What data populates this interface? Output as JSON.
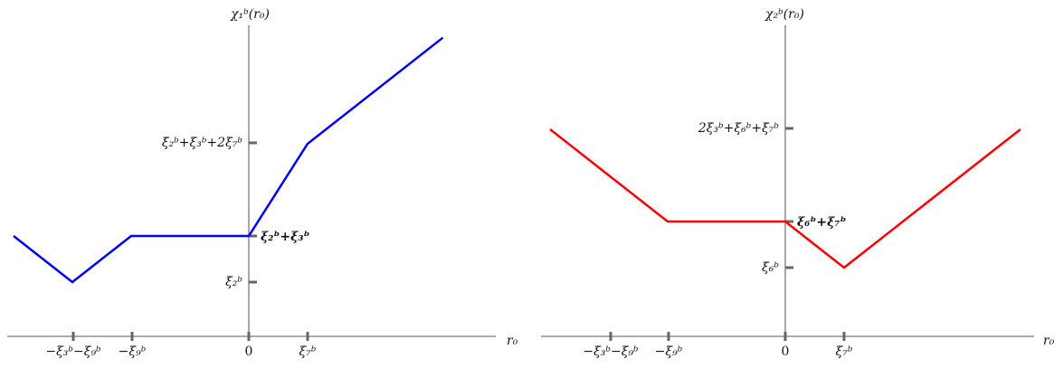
{
  "chart_data": [
    {
      "type": "line",
      "ylabel": "χ₁ᵇ(r₀)",
      "xlabel": "r₀",
      "x_ticks": [
        {
          "x": -2,
          "label": "−ξ₃ᵇ−ξ₉ᵇ"
        },
        {
          "x": -1,
          "label": "−ξ₉ᵇ"
        },
        {
          "x": 0,
          "label": "0"
        },
        {
          "x": 1,
          "label": "ξ₇ᵇ"
        }
      ],
      "y_ticks": [
        {
          "y": 1,
          "label": "ξ₂ᵇ"
        },
        {
          "y": 2,
          "label": "ξ₂ᵇ+ξ₃ᵇ"
        },
        {
          "y": 3,
          "label": "ξ₂ᵇ+ξ₃ᵇ+2ξ₇ᵇ"
        }
      ],
      "color": "#0000ff",
      "series": [
        {
          "points": [
            [
              -4.0,
              2.0
            ],
            [
              -3.0,
              1.0
            ],
            [
              -2.0,
              2.0
            ],
            [
              0.0,
              2.0
            ],
            [
              1.0,
              4.0
            ],
            [
              3.3,
              6.3
            ]
          ]
        }
      ]
    },
    {
      "type": "line",
      "ylabel": "χ₂ᵇ(r₀)",
      "xlabel": "r₀",
      "x_ticks": [
        {
          "x": -3,
          "label": "−ξ₃ᵇ−ξ₉ᵇ"
        },
        {
          "x": -2,
          "label": "−ξ₉ᵇ"
        },
        {
          "x": 0,
          "label": "0"
        },
        {
          "x": 1,
          "label": "ξ₇ᵇ"
        }
      ],
      "y_ticks": [
        {
          "y": 1,
          "label": "ξ₆ᵇ"
        },
        {
          "y": 2,
          "label": "ξ₆ᵇ+ξ₇ᵇ"
        },
        {
          "y": 3,
          "label": "2ξ₃ᵇ+ξ₆ᵇ+ξ₇ᵇ"
        }
      ],
      "color": "#ff0000",
      "series": [
        {
          "points": [
            [
              -4.0,
              4.0
            ],
            [
              -3.0,
              3.0
            ],
            [
              -2.0,
              2.0
            ],
            [
              0.0,
              2.0
            ],
            [
              1.0,
              1.0
            ],
            [
              4.0,
              4.0
            ]
          ]
        }
      ]
    }
  ]
}
